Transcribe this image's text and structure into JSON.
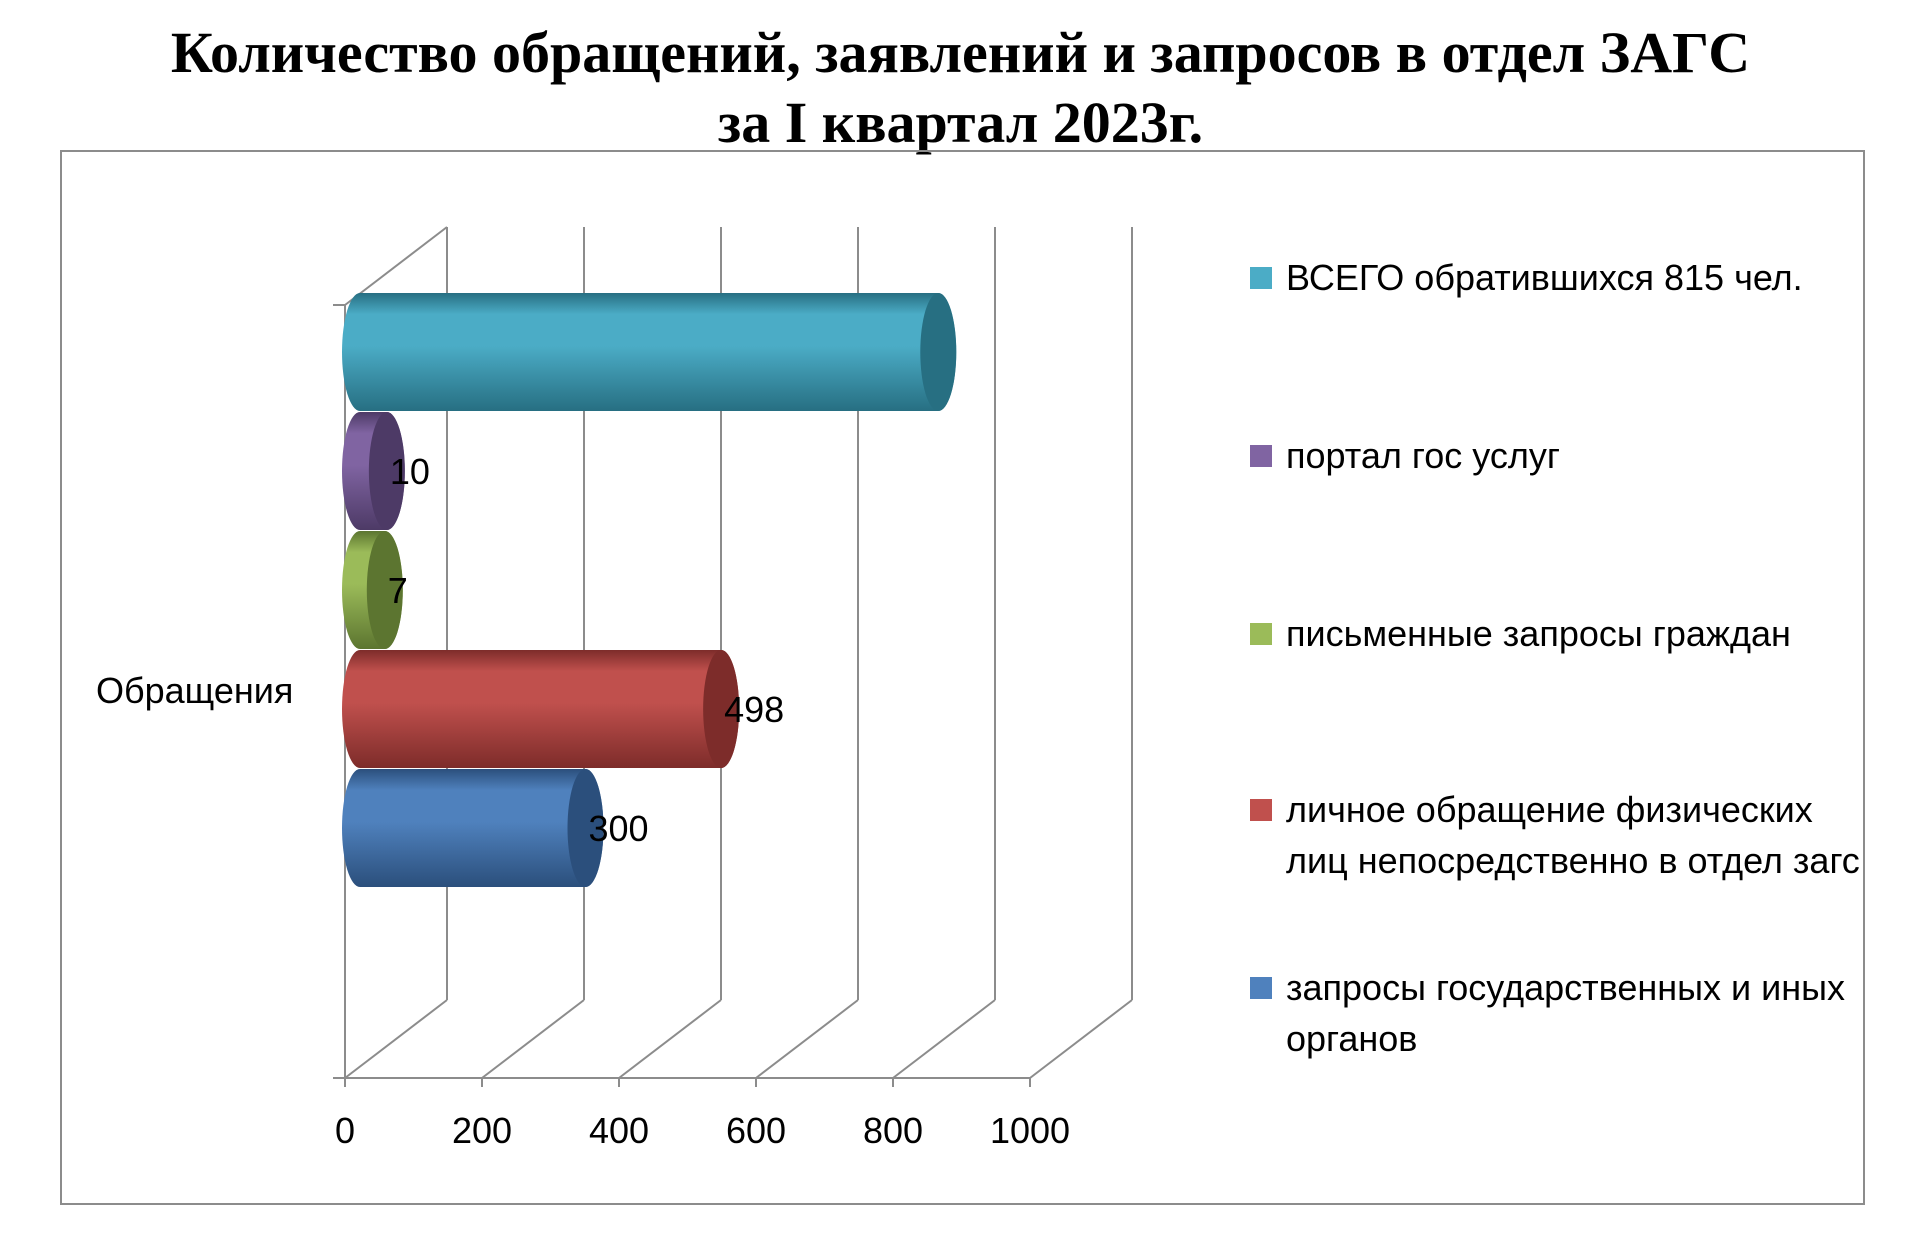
{
  "title": {
    "line1": "Количество обращений, заявлений и запросов в отдел ЗАГС",
    "line2": "за I квартал 2023г."
  },
  "chart_data": {
    "type": "bar",
    "orientation": "horizontal",
    "style": "3d-cylinder",
    "categories": [
      "Обращения"
    ],
    "xlim": [
      0,
      1000
    ],
    "xticks": [
      "0",
      "200",
      "400",
      "600",
      "800",
      "1000"
    ],
    "grid": true,
    "legend_position": "right",
    "series": [
      {
        "name": "запросы государственных и иных органов",
        "values": [
          300
        ],
        "data_label": "300",
        "color": "#4f81bd",
        "color_dark": "#2b4f7c"
      },
      {
        "name": "личное обращение физических лиц непосредственно в отдел загс",
        "values": [
          498
        ],
        "data_label": "498",
        "color": "#c0504d",
        "color_dark": "#7d2c2a"
      },
      {
        "name": "письменные запросы граждан",
        "values": [
          7
        ],
        "data_label": "7",
        "color": "#9bbb59",
        "color_dark": "#5c7530"
      },
      {
        "name": "портал гос услуг",
        "values": [
          10
        ],
        "data_label": "10",
        "color": "#8064a2",
        "color_dark": "#4d3a66"
      },
      {
        "name": "ВСЕГО обратившихся 815 чел.",
        "values": [
          815
        ],
        "data_label": "",
        "color": "#4bacc6",
        "color_dark": "#276f82"
      }
    ]
  }
}
